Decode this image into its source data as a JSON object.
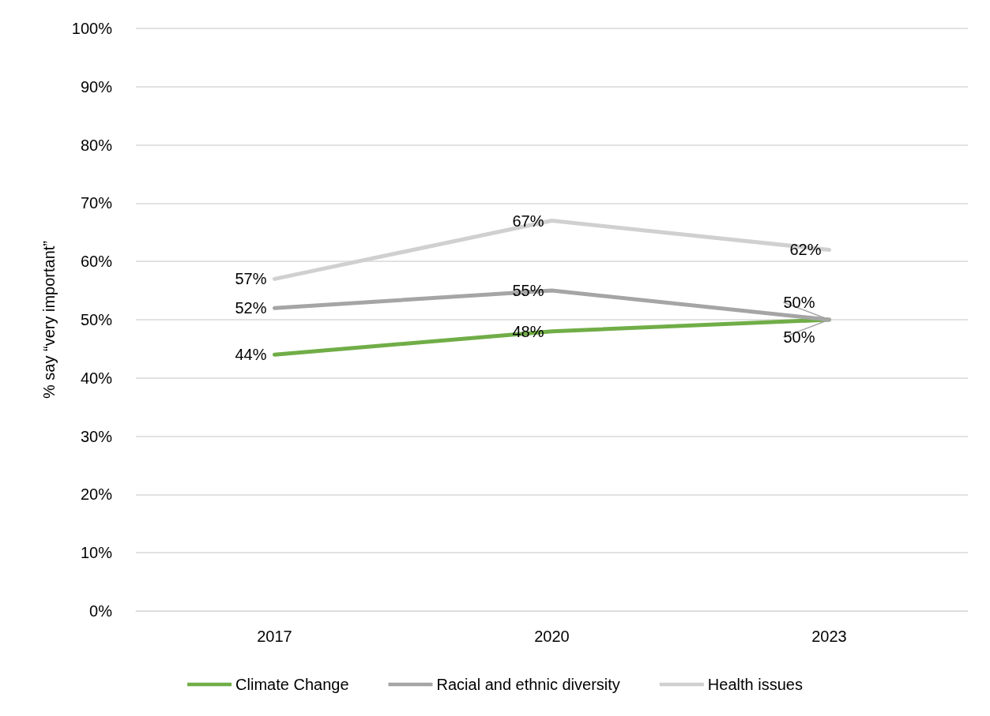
{
  "chart_data": {
    "type": "line",
    "ylabel": "% say “very important”",
    "categories": [
      "2017",
      "2020",
      "2023"
    ],
    "series": [
      {
        "name": "Climate Change",
        "color": "#70ad47",
        "values": [
          44,
          48,
          50
        ],
        "value_labels": [
          "44%",
          "48%",
          "50%"
        ]
      },
      {
        "name": "Racial and ethnic diversity",
        "color": "#a5a5a5",
        "values": [
          52,
          55,
          50
        ],
        "value_labels": [
          "52%",
          "55%",
          "50%"
        ]
      },
      {
        "name": "Health issues",
        "color": "#d0d0d0",
        "values": [
          57,
          67,
          62
        ],
        "value_labels": [
          "57%",
          "67%",
          "62%"
        ]
      }
    ],
    "ylim": [
      0,
      100
    ],
    "yticks": [
      {
        "value": 0,
        "label": "0%"
      },
      {
        "value": 10,
        "label": "10%"
      },
      {
        "value": 20,
        "label": "20%"
      },
      {
        "value": 30,
        "label": "30%"
      },
      {
        "value": 40,
        "label": "40%"
      },
      {
        "value": 50,
        "label": "50%"
      },
      {
        "value": 60,
        "label": "60%"
      },
      {
        "value": 70,
        "label": "70%"
      },
      {
        "value": 80,
        "label": "80%"
      },
      {
        "value": 90,
        "label": "90%"
      },
      {
        "value": 100,
        "label": "100%"
      }
    ],
    "grid": "y",
    "legend": "bottom",
    "marker": "none",
    "line_style": "solid"
  }
}
